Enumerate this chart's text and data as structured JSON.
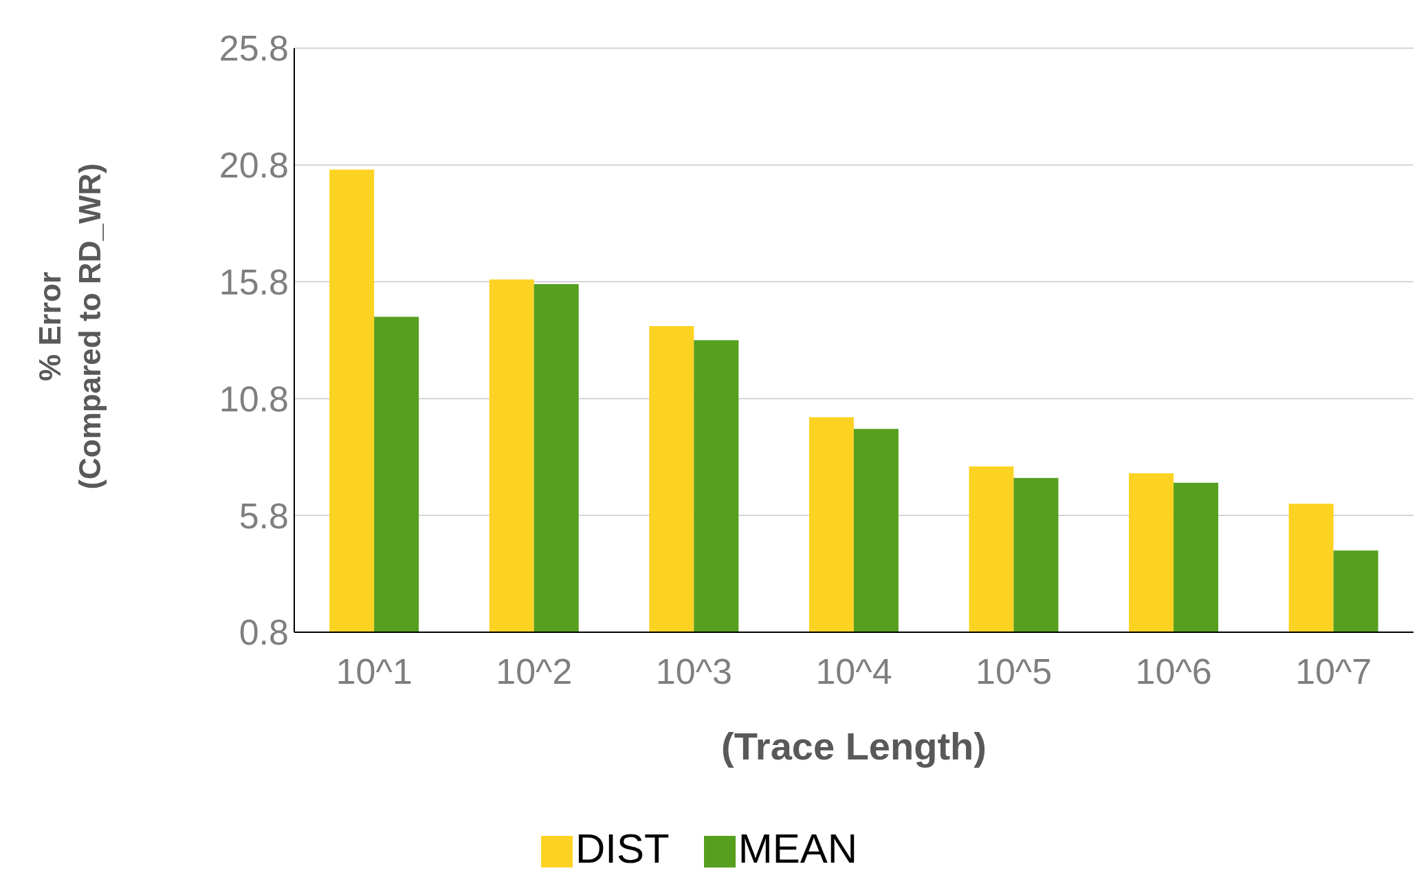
{
  "chart_data": {
    "type": "bar",
    "xlabel": "(Trace Length)",
    "ylabel": "% Error\n(Compared to RD_WR)",
    "categories": [
      "10^1",
      "10^2",
      "10^3",
      "10^4",
      "10^5",
      "10^6",
      "10^7"
    ],
    "series": [
      {
        "name": "DIST",
        "color": "#fdd323",
        "values": [
          20.6,
          15.9,
          13.9,
          10.0,
          7.9,
          7.6,
          6.3
        ]
      },
      {
        "name": "MEAN",
        "color": "#579f1e",
        "values": [
          14.3,
          15.7,
          13.3,
          9.5,
          7.4,
          7.2,
          4.3
        ]
      }
    ],
    "ylim": [
      0.8,
      25.8
    ],
    "yticks": [
      0.8,
      5.8,
      10.8,
      15.8,
      20.8,
      25.8
    ],
    "grid": "y",
    "legend": "bottom"
  }
}
